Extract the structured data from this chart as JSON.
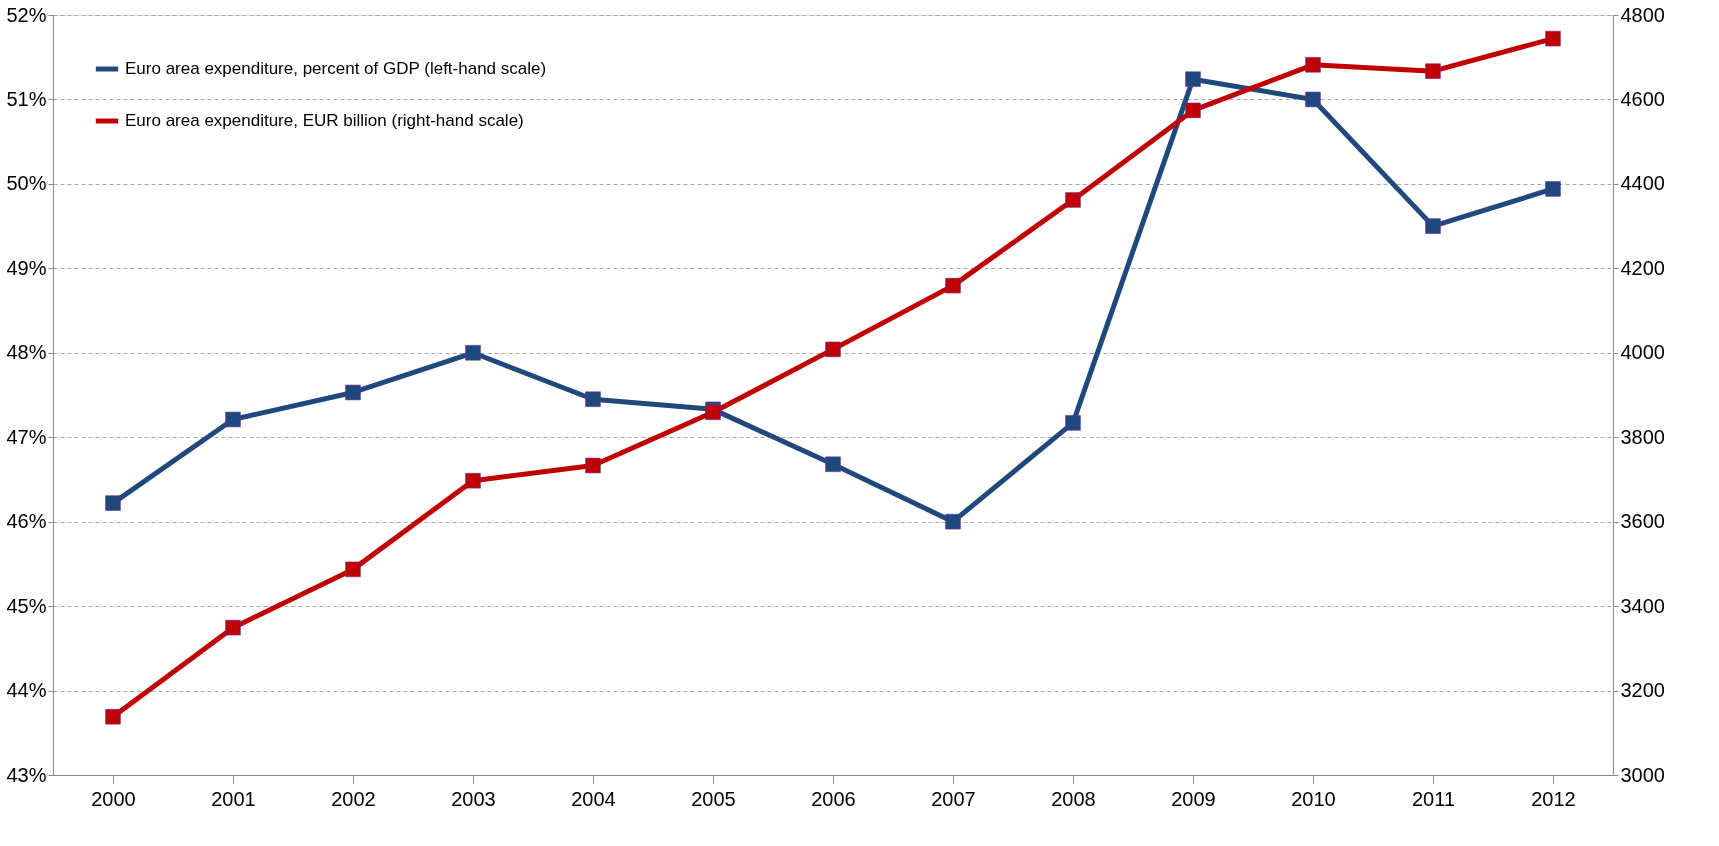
{
  "chart_data": {
    "type": "line",
    "categories": [
      "2000",
      "2001",
      "2002",
      "2003",
      "2004",
      "2005",
      "2006",
      "2007",
      "2008",
      "2009",
      "2010",
      "2011",
      "2012"
    ],
    "series": [
      {
        "name": "Euro area expenditure, percent of GDP (left-hand scale)",
        "color": "#1f497d",
        "values": [
          46.22,
          47.21,
          47.53,
          48.0,
          47.45,
          47.33,
          46.68,
          46.0,
          47.17,
          51.24,
          51.0,
          49.5,
          49.94
        ]
      },
      {
        "name": "Euro area expenditure, EUR billion (right-hand scale)",
        "color": "#c00000",
        "axis": "y2",
        "values": [
          3138,
          3349,
          3487,
          3697,
          3733,
          3859,
          4008,
          4159,
          4362,
          4574,
          4682,
          4667,
          4744
        ]
      }
    ],
    "ylim": [
      43,
      52
    ],
    "yticks": [
      {
        "value": 43,
        "label": "43%"
      },
      {
        "value": 44,
        "label": "44%"
      },
      {
        "value": 45,
        "label": "45%"
      },
      {
        "value": 46,
        "label": "46%"
      },
      {
        "value": 47,
        "label": "47%"
      },
      {
        "value": 48,
        "label": "48%"
      },
      {
        "value": 49,
        "label": "49%"
      },
      {
        "value": 50,
        "label": "50%"
      },
      {
        "value": 51,
        "label": "51%"
      },
      {
        "value": 52,
        "label": "52%"
      }
    ],
    "y2lim": [
      3000,
      4800
    ],
    "y2ticks": [
      3000,
      3200,
      3400,
      3600,
      3800,
      4000,
      4200,
      4400,
      4600,
      4800
    ],
    "grid": "y",
    "legend": "top left",
    "marker": "square",
    "line_style": "solid"
  }
}
